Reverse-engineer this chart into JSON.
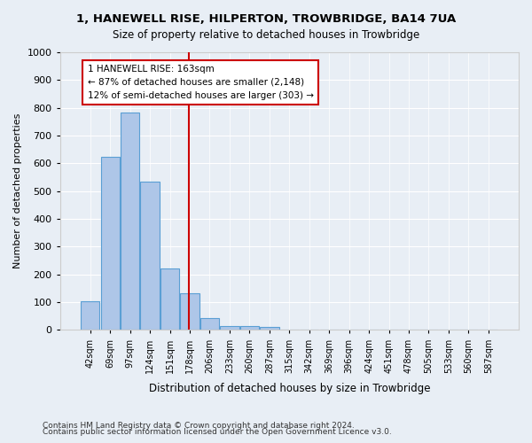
{
  "title1": "1, HANEWELL RISE, HILPERTON, TROWBRIDGE, BA14 7UA",
  "title2": "Size of property relative to detached houses in Trowbridge",
  "xlabel": "Distribution of detached houses by size in Trowbridge",
  "ylabel": "Number of detached properties",
  "bin_labels": [
    "42sqm",
    "69sqm",
    "97sqm",
    "124sqm",
    "151sqm",
    "178sqm",
    "206sqm",
    "233sqm",
    "260sqm",
    "287sqm",
    "315sqm",
    "342sqm",
    "369sqm",
    "396sqm",
    "424sqm",
    "451sqm",
    "478sqm",
    "505sqm",
    "533sqm",
    "560sqm",
    "587sqm"
  ],
  "bar_values": [
    103,
    623,
    783,
    535,
    222,
    133,
    42,
    15,
    15,
    11,
    0,
    0,
    0,
    0,
    0,
    0,
    0,
    0,
    0,
    0,
    0
  ],
  "bar_color": "#aec6e8",
  "bar_edge_color": "#5a9fd4",
  "vline_color": "#cc0000",
  "annotation_line1": "1 HANEWELL RISE: 163sqm",
  "annotation_line2": "← 87% of detached houses are smaller (2,148)",
  "annotation_line3": "12% of semi-detached houses are larger (303) →",
  "annotation_box_color": "#ffffff",
  "annotation_box_edge": "#cc0000",
  "ylim": [
    0,
    1000
  ],
  "yticks": [
    0,
    100,
    200,
    300,
    400,
    500,
    600,
    700,
    800,
    900,
    1000
  ],
  "footnote1": "Contains HM Land Registry data © Crown copyright and database right 2024.",
  "footnote2": "Contains public sector information licensed under the Open Government Licence v3.0.",
  "bg_color": "#e8eef5",
  "plot_bg_color": "#e8eef5",
  "vline_x": 4.94
}
